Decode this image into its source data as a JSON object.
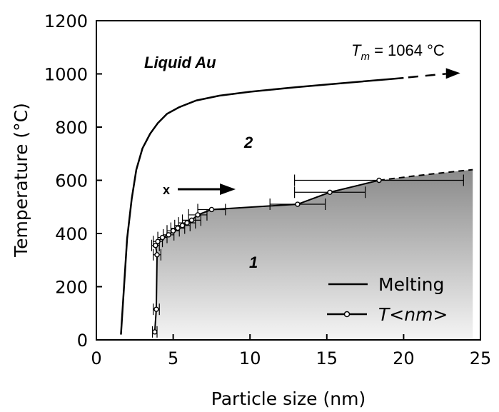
{
  "chart_data": {
    "type": "line",
    "xlabel": "Particle size (nm)",
    "ylabel": "Temperature (°C)",
    "xlim": [
      0,
      25
    ],
    "ylim": [
      0,
      1200
    ],
    "x_ticks": [
      "0",
      "5",
      "10",
      "15",
      "20",
      "25"
    ],
    "y_ticks": [
      "0",
      "200",
      "400",
      "600",
      "800",
      "1000",
      "1200"
    ],
    "grid": false,
    "legend_position": "bottom-right",
    "series": [
      {
        "name": "Melting",
        "style": "solid line",
        "x": [
          1.6,
          1.8,
          2.0,
          2.3,
          2.6,
          3.0,
          3.5,
          4.0,
          4.6,
          5.4,
          6.5,
          8.0,
          10.0,
          13.0,
          16.0,
          19.0,
          20.0
        ],
        "y": [
          20,
          200,
          380,
          530,
          640,
          720,
          775,
          815,
          850,
          875,
          900,
          918,
          933,
          950,
          965,
          980,
          985
        ]
      },
      {
        "name": "Melting (continuation)",
        "style": "dashed arrow",
        "x": [
          20.3,
          23.5
        ],
        "y": [
          987,
          1003
        ]
      },
      {
        "name": "T<nm>",
        "style": "line with open circles and error bars",
        "x": [
          3.8,
          3.9,
          3.95,
          3.85,
          4.0,
          4.3,
          4.7,
          5.0,
          5.3,
          5.6,
          5.9,
          6.2,
          6.6,
          7.5,
          13.1,
          15.2,
          18.4
        ],
        "y": [
          30,
          115,
          320,
          355,
          370,
          385,
          395,
          410,
          420,
          430,
          440,
          450,
          470,
          490,
          510,
          555,
          600
        ],
        "x_err": [
          0.15,
          0.2,
          0.25,
          0.25,
          0.3,
          0.3,
          0.35,
          0.4,
          0.45,
          0.5,
          0.55,
          0.6,
          0.6,
          0.9,
          1.8,
          2.3,
          5.5
        ]
      },
      {
        "name": "T<nm> (extrapolation)",
        "style": "dashed line",
        "x": [
          18.4,
          20.5,
          22.5,
          24.5
        ],
        "y": [
          600,
          615,
          628,
          640
        ]
      }
    ],
    "regions": [
      {
        "label": "1",
        "description": "shaded region below T<nm> curve"
      },
      {
        "label": "2",
        "description": "region between T<nm> and melting curves"
      }
    ],
    "annotations": {
      "liquid": "Liquid Au",
      "tm_label": "T",
      "tm_sub": "m",
      "tm_value": " = 1064 °C",
      "region1": "1",
      "region2": "2",
      "x_marker": "x"
    },
    "legend": [
      {
        "label": "Melting",
        "marker": "line"
      },
      {
        "label": "T<nm>",
        "marker": "line-circle"
      }
    ],
    "colors": {
      "line": "#000000",
      "shade_dark": "#8a8a8a",
      "shade_light": "#f4f4f4"
    }
  }
}
